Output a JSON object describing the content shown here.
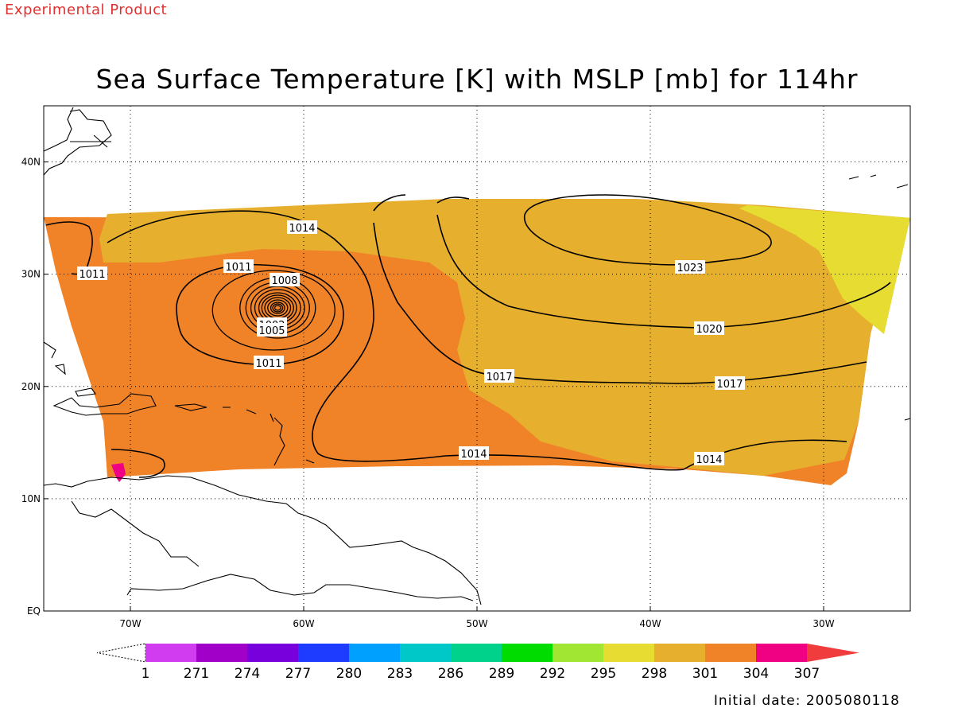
{
  "watermark": "Experimental Product",
  "title": "Sea Surface Temperature [K] with MSLP [mb] for 114hr",
  "initial_date": "Initial date: 2005080118",
  "map": {
    "lon_range": [
      -75,
      -25
    ],
    "lat_range": [
      0,
      45
    ],
    "x_ticks": [
      {
        "lon": -70,
        "label": "70W"
      },
      {
        "lon": -60,
        "label": "60W"
      },
      {
        "lon": -50,
        "label": "50W"
      },
      {
        "lon": -40,
        "label": "40W"
      },
      {
        "lon": -30,
        "label": "30W"
      }
    ],
    "y_ticks": [
      {
        "lat": 0,
        "label": "EQ"
      },
      {
        "lat": 10,
        "label": "10N"
      },
      {
        "lat": 20,
        "label": "20N"
      },
      {
        "lat": 30,
        "label": "30N"
      },
      {
        "lat": 40,
        "label": "40N"
      }
    ],
    "grid": "dotted",
    "sst_field_colors": {
      "warm_304": "#f08228",
      "mid_301": "#e6af2d",
      "cool_298": "#e6dc32",
      "hot_307": "#f00082"
    },
    "coastline_color": "#000000"
  },
  "mslp_contours": {
    "units": "mb",
    "labels": [
      "1014",
      "1011",
      "1011",
      "1008",
      "1002",
      "1005",
      "1011",
      "1023",
      "1020",
      "1017",
      "1017",
      "1014",
      "1014"
    ],
    "low_center": {
      "lon": -61.5,
      "lat": 27
    }
  },
  "colorbar": {
    "title_units": "K",
    "colors": [
      "#ffffff",
      "#d23cf0",
      "#a000c8",
      "#7800dc",
      "#1e3cff",
      "#00a0ff",
      "#00c8c8",
      "#00d28c",
      "#00dc00",
      "#a0e632",
      "#e6dc32",
      "#e6af2d",
      "#f08228",
      "#f00082",
      "#f03c3c"
    ],
    "labels": [
      "1",
      "271",
      "274",
      "277",
      "280",
      "283",
      "286",
      "289",
      "292",
      "295",
      "298",
      "301",
      "304",
      "307"
    ]
  }
}
